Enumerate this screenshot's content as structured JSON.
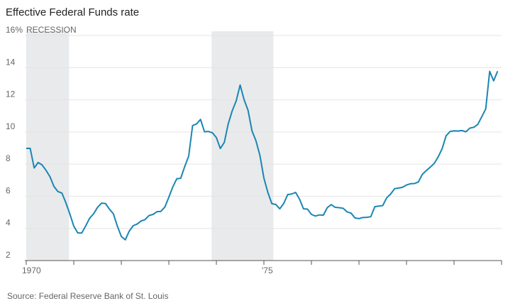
{
  "chart_data": {
    "type": "line",
    "title": "Effective Federal Funds rate",
    "annotation": "RECESSION",
    "source": "Source: Federal Reserve Bank of St. Louis",
    "recessions": [
      [
        1970.0,
        1970.9
      ],
      [
        1973.9,
        1975.2
      ]
    ],
    "xlim": [
      1970,
      1980
    ],
    "xticks": [
      1970,
      {
        "value": 1975,
        "label": "'75"
      }
    ],
    "minor_xticks": [
      1971,
      1972,
      1973,
      1974,
      1976,
      1977,
      1978,
      1979,
      1980
    ],
    "ylim": [
      2,
      16
    ],
    "yticks": [
      2,
      4,
      6,
      8,
      10,
      12,
      14,
      {
        "value": 16,
        "label": "16%"
      }
    ],
    "grid": true,
    "x": [
      1970,
      1970.083,
      1970.167,
      1970.25,
      1970.333,
      1970.417,
      1970.5,
      1970.583,
      1970.667,
      1970.75,
      1970.833,
      1970.917,
      1971,
      1971.083,
      1971.167,
      1971.25,
      1971.333,
      1971.417,
      1971.5,
      1971.583,
      1971.667,
      1971.75,
      1971.833,
      1971.917,
      1972,
      1972.083,
      1972.167,
      1972.25,
      1972.333,
      1972.417,
      1972.5,
      1972.583,
      1972.667,
      1972.75,
      1972.833,
      1972.917,
      1973,
      1973.083,
      1973.167,
      1973.25,
      1973.333,
      1973.417,
      1973.5,
      1973.583,
      1973.667,
      1973.75,
      1973.833,
      1973.917,
      1974,
      1974.083,
      1974.167,
      1974.25,
      1974.333,
      1974.417,
      1974.5,
      1974.583,
      1974.667,
      1974.75,
      1974.833,
      1974.917,
      1975,
      1975.083,
      1975.167,
      1975.25,
      1975.333,
      1975.417,
      1975.5,
      1975.583,
      1975.667,
      1975.75,
      1975.833,
      1975.917,
      1976,
      1976.083,
      1976.167,
      1976.25,
      1976.333,
      1976.417,
      1976.5,
      1976.583,
      1976.667,
      1976.75,
      1976.833,
      1976.917,
      1977,
      1977.083,
      1977.167,
      1977.25,
      1977.333,
      1977.417,
      1977.5,
      1977.583,
      1977.667,
      1977.75,
      1977.833,
      1977.917,
      1978,
      1978.083,
      1978.167,
      1978.25,
      1978.333,
      1978.417,
      1978.5,
      1978.583,
      1978.667,
      1978.75,
      1978.833,
      1978.917,
      1979,
      1979.083,
      1979.167,
      1979.25,
      1979.333,
      1979.417,
      1979.5,
      1979.583,
      1979.667,
      1979.75,
      1979.833,
      1979.917
    ],
    "series": [
      {
        "name": "Effective Federal Funds rate",
        "color": "#1a86b3",
        "values": [
          8.98,
          8.98,
          7.76,
          8.1,
          7.95,
          7.61,
          7.21,
          6.61,
          6.29,
          6.2,
          5.6,
          4.9,
          4.14,
          3.72,
          3.71,
          4.15,
          4.63,
          4.91,
          5.31,
          5.57,
          5.55,
          5.2,
          4.91,
          4.14,
          3.5,
          3.29,
          3.83,
          4.17,
          4.27,
          4.46,
          4.55,
          4.8,
          4.87,
          5.04,
          5.06,
          5.33,
          5.94,
          6.58,
          7.09,
          7.12,
          7.84,
          8.49,
          10.4,
          10.5,
          10.78,
          10.01,
          10.03,
          9.95,
          9.65,
          8.97,
          9.35,
          10.51,
          11.31,
          11.93,
          12.92,
          12.01,
          11.34,
          10.06,
          9.45,
          8.53,
          7.13,
          6.24,
          5.54,
          5.49,
          5.22,
          5.55,
          6.1,
          6.14,
          6.24,
          5.82,
          5.22,
          5.2,
          4.87,
          4.77,
          4.84,
          4.82,
          5.29,
          5.48,
          5.31,
          5.29,
          5.25,
          5.03,
          4.95,
          4.65,
          4.61,
          4.68,
          4.69,
          4.73,
          5.35,
          5.39,
          5.42,
          5.9,
          6.14,
          6.47,
          6.51,
          6.56,
          6.7,
          6.78,
          6.79,
          6.89,
          7.36,
          7.6,
          7.81,
          8.04,
          8.45,
          8.96,
          9.76,
          10.03,
          10.07,
          10.06,
          10.09,
          10.01,
          10.24,
          10.29,
          10.47,
          10.94,
          11.43,
          13.77,
          13.18,
          13.78
        ]
      }
    ]
  }
}
